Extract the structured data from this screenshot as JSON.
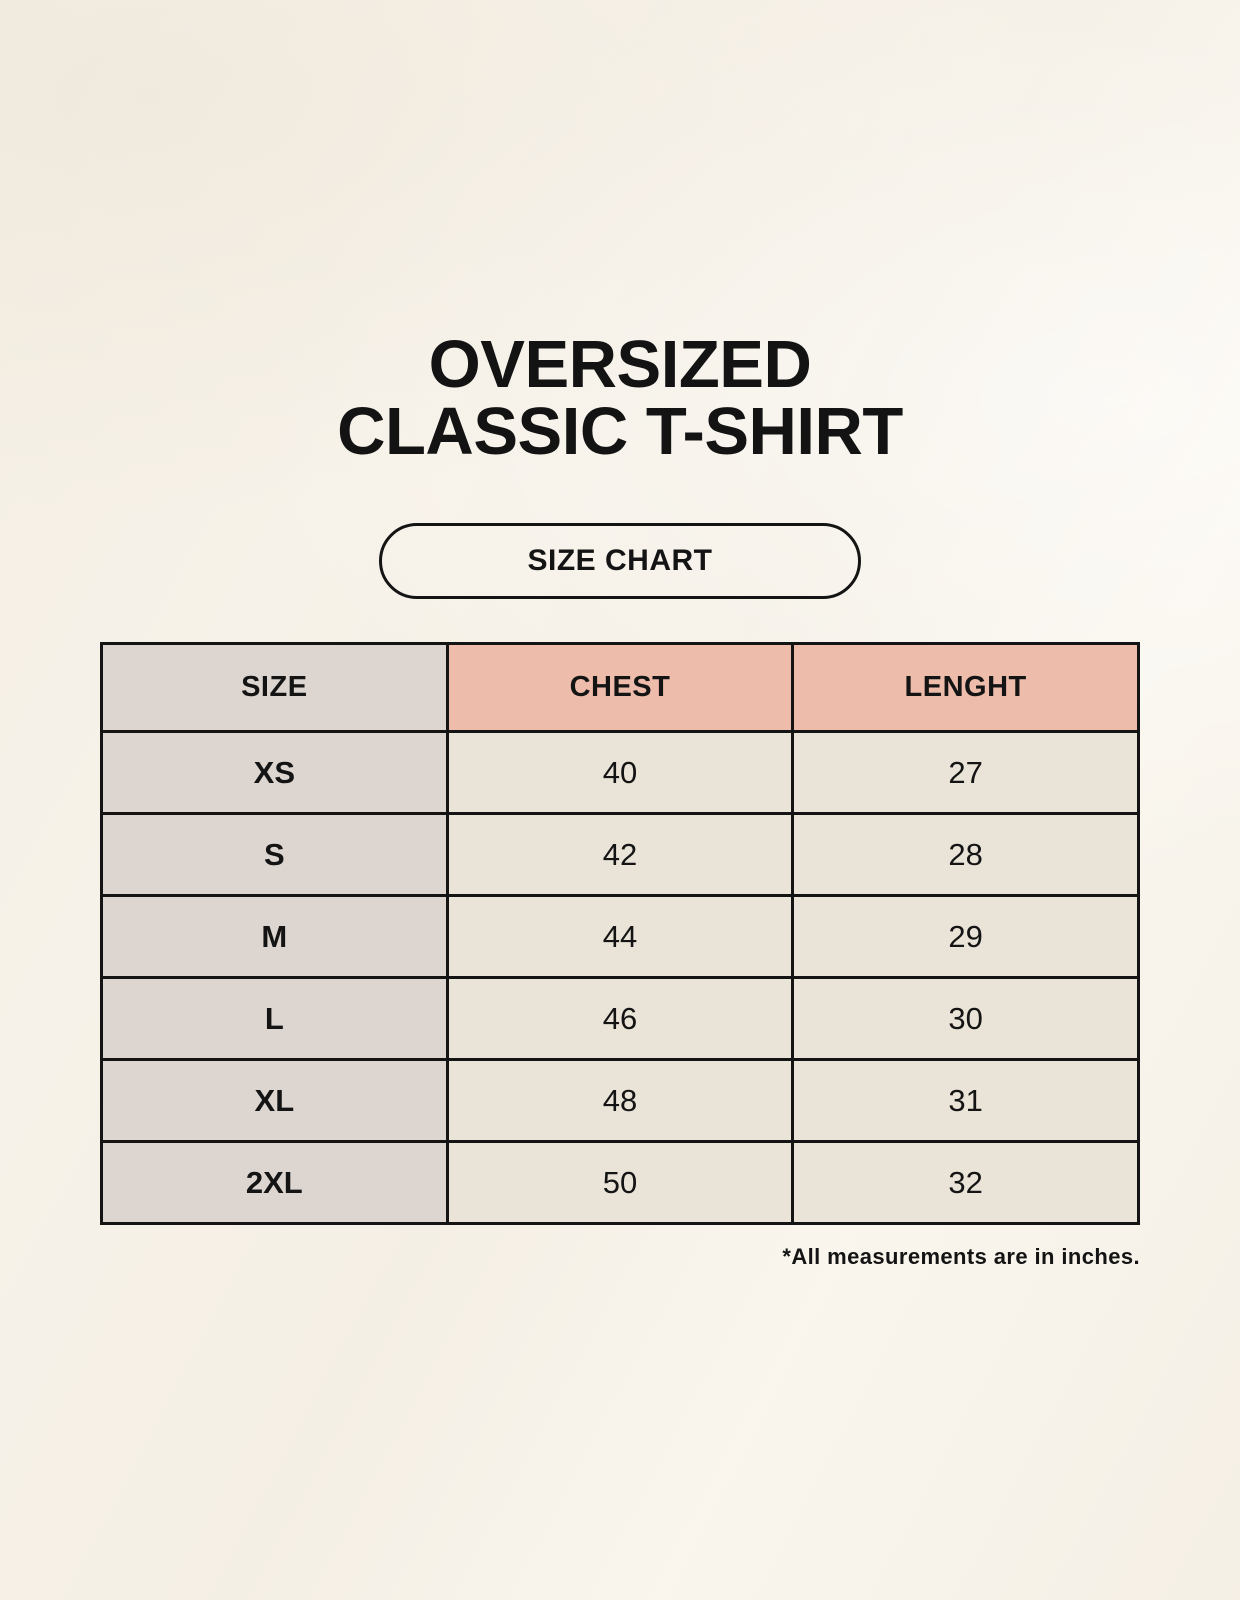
{
  "header": {
    "title_line1": "OVERSIZED",
    "title_line2": "CLASSIC T-SHIRT",
    "size_chart_label": "SIZE CHART"
  },
  "table": {
    "columns": [
      "SIZE",
      "CHEST",
      "LENGHT"
    ],
    "rows": [
      [
        "XS",
        "40",
        "27"
      ],
      [
        "S",
        "42",
        "28"
      ],
      [
        "M",
        "44",
        "29"
      ],
      [
        "L",
        "46",
        "30"
      ],
      [
        "XL",
        "48",
        "31"
      ],
      [
        "2XL",
        "50",
        "32"
      ]
    ],
    "footnote": "*All measurements are in inches."
  },
  "chart_data": {
    "type": "table",
    "title": "OVERSIZED CLASSIC T-SHIRT",
    "subtitle": "SIZE CHART",
    "columns": [
      "SIZE",
      "CHEST",
      "LENGHT"
    ],
    "rows": [
      {
        "size": "XS",
        "chest": 40,
        "lenght": 27
      },
      {
        "size": "S",
        "chest": 42,
        "lenght": 28
      },
      {
        "size": "M",
        "chest": 44,
        "lenght": 29
      },
      {
        "size": "L",
        "chest": 46,
        "lenght": 30
      },
      {
        "size": "XL",
        "chest": 48,
        "lenght": 31
      },
      {
        "size": "2XL",
        "chest": 50,
        "lenght": 32
      }
    ],
    "units": "inches",
    "note": "*All measurements are in inches."
  },
  "colors": {
    "background": "#f7f2e9",
    "size_column_bg": "#ddd6d0",
    "measure_header_bg": "#eebcab",
    "data_cell_bg": "#eae3d8",
    "border": "#141414",
    "text": "#141414"
  }
}
